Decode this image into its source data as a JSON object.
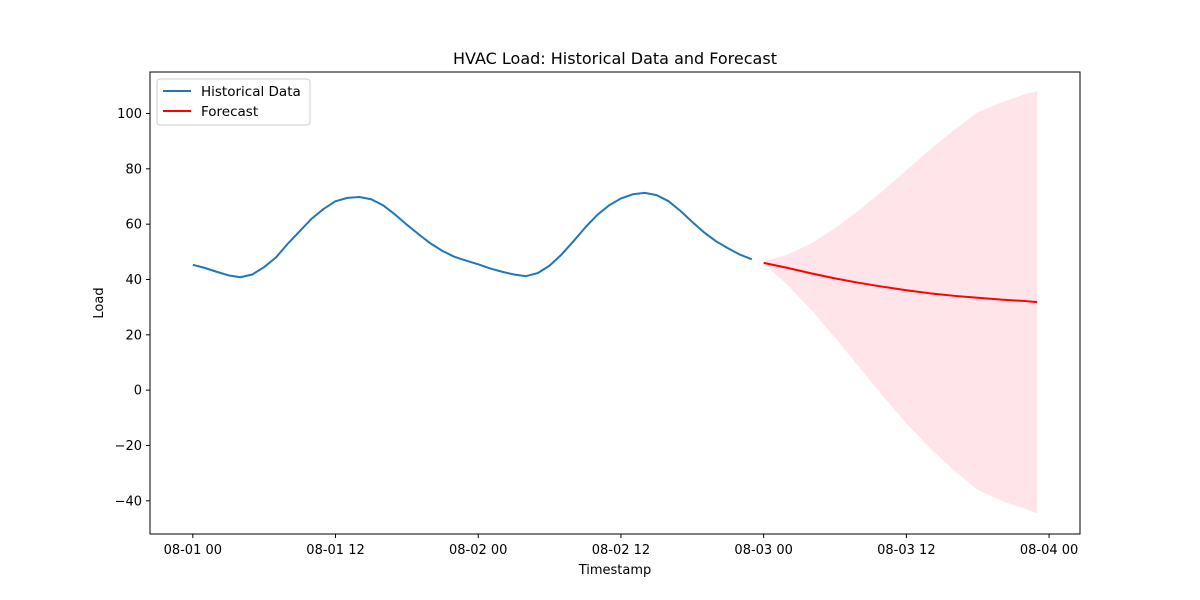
{
  "chart_data": {
    "type": "line",
    "title": "HVAC Load: Historical Data and Forecast",
    "xlabel": "Timestamp",
    "ylabel": "Load",
    "x_tick_labels": [
      "08-01 00",
      "08-01 12",
      "08-02 00",
      "08-02 12",
      "08-03 00",
      "08-03 12",
      "08-04 00"
    ],
    "x_ticks_hours": [
      0,
      12,
      24,
      36,
      48,
      60,
      72
    ],
    "y_ticks": [
      -40,
      -20,
      0,
      20,
      40,
      60,
      80,
      100
    ],
    "xlim_hours": [
      -3.6,
      74.6
    ],
    "ylim": [
      -52,
      115
    ],
    "grid": false,
    "legend_position": "upper-left",
    "colors": {
      "historical": "#1f77b4",
      "forecast": "#ff0000",
      "interval": "#ffe4ea"
    },
    "series": [
      {
        "name": "Historical Data",
        "x_hours": [
          0,
          1,
          2,
          3,
          4,
          5,
          6,
          7,
          8,
          9,
          10,
          11,
          12,
          13,
          14,
          15,
          16,
          17,
          18,
          19,
          20,
          21,
          22,
          23,
          24,
          25,
          26,
          27,
          28,
          29,
          30,
          31,
          32,
          33,
          34,
          35,
          36,
          37,
          38,
          39,
          40,
          41,
          42,
          43,
          44,
          45,
          46,
          47
        ],
        "values": [
          45.3,
          44.2,
          42.8,
          41.5,
          40.8,
          41.8,
          44.5,
          48.0,
          53.0,
          57.5,
          62.0,
          65.5,
          68.3,
          69.5,
          69.8,
          69.0,
          66.8,
          63.5,
          59.8,
          56.3,
          53.0,
          50.3,
          48.2,
          46.8,
          45.5,
          44.0,
          42.8,
          41.8,
          41.2,
          42.3,
          45.0,
          49.0,
          53.8,
          58.8,
          63.3,
          66.8,
          69.3,
          70.8,
          71.3,
          70.5,
          68.3,
          64.8,
          60.8,
          57.0,
          53.8,
          51.3,
          49.0,
          47.3
        ]
      },
      {
        "name": "Forecast",
        "x_hours": [
          48,
          50,
          52,
          54,
          56,
          58,
          60,
          62,
          64,
          66,
          68,
          70,
          71
        ],
        "values": [
          46.0,
          44.2,
          42.2,
          40.4,
          38.8,
          37.4,
          36.1,
          35.0,
          34.1,
          33.4,
          32.7,
          32.2,
          31.8
        ],
        "interval_upper": [
          46.6,
          49.0,
          53.0,
          58.5,
          65.0,
          72.0,
          79.5,
          87.0,
          94.0,
          100.5,
          104.0,
          107.0,
          108.0
        ],
        "interval_lower": [
          45.8,
          38.0,
          29.0,
          19.0,
          8.5,
          -2.0,
          -12.0,
          -21.0,
          -29.0,
          -36.0,
          -40.0,
          -43.0,
          -44.5
        ]
      }
    ]
  }
}
